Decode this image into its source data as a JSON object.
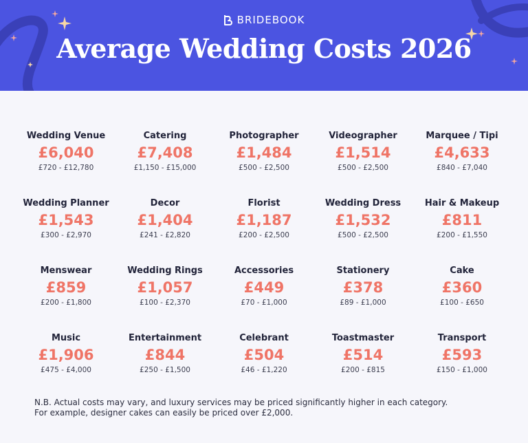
{
  "header": {
    "brand": "BRIDEBOOK",
    "title": "Average Wedding Costs 2026"
  },
  "costs": [
    [
      {
        "category": "Wedding Venue",
        "average": "£6,040",
        "range": "£720 - £12,780"
      },
      {
        "category": "Catering",
        "average": "£7,408",
        "range": "£1,150 - £15,000"
      },
      {
        "category": "Photographer",
        "average": "£1,484",
        "range": "£500 - £2,500"
      },
      {
        "category": "Videographer",
        "average": "£1,514",
        "range": "£500 - £2,500"
      },
      {
        "category": "Marquee / Tipi",
        "average": "£4,633",
        "range": "£840 - £7,040"
      }
    ],
    [
      {
        "category": "Wedding Planner",
        "average": "£1,543",
        "range": "£300 - £2,970"
      },
      {
        "category": "Decor",
        "average": "£1,404",
        "range": "£241 - £2,820"
      },
      {
        "category": "Florist",
        "average": "£1,187",
        "range": "£200 - £2,500"
      },
      {
        "category": "Wedding Dress",
        "average": "£1,532",
        "range": "£500 - £2,500"
      },
      {
        "category": "Hair & Makeup",
        "average": "£811",
        "range": "£200 - £1,550"
      }
    ],
    [
      {
        "category": "Menswear",
        "average": "£859",
        "range": "£200 - £1,800"
      },
      {
        "category": "Wedding Rings",
        "average": "£1,057",
        "range": "£100 - £2,370"
      },
      {
        "category": "Accessories",
        "average": "£449",
        "range": "£70 - £1,000"
      },
      {
        "category": "Stationery",
        "average": "£378",
        "range": "£89 - £1,000"
      },
      {
        "category": "Cake",
        "average": "£360",
        "range": "£100 - £650"
      }
    ],
    [
      {
        "category": "Music",
        "average": "£1,906",
        "range": "£475 - £4,000"
      },
      {
        "category": "Entertainment",
        "average": "£844",
        "range": "£250 - £1,500"
      },
      {
        "category": "Celebrant",
        "average": "£504",
        "range": "£46 - £1,220"
      },
      {
        "category": "Toastmaster",
        "average": "£514",
        "range": "£200 - £815"
      },
      {
        "category": "Transport",
        "average": "£593",
        "range": "£150 - £1,000"
      }
    ]
  ],
  "note": {
    "line1": "N.B. Actual costs may vary, and luxury services may be priced significantly higher in each category.",
    "line2": "For example, designer cakes can easily be priced over £2,000."
  },
  "colors": {
    "header_bg": "#4b54e1",
    "accent_swirl": "#3a40b8",
    "price": "#ef7466",
    "sparkle_pink": "#f4a7a0",
    "sparkle_gold": "#f7d7a6",
    "page_bg": "#f6f6fb"
  },
  "icons": [
    "bridebook-logo-icon",
    "sparkle-icon"
  ]
}
